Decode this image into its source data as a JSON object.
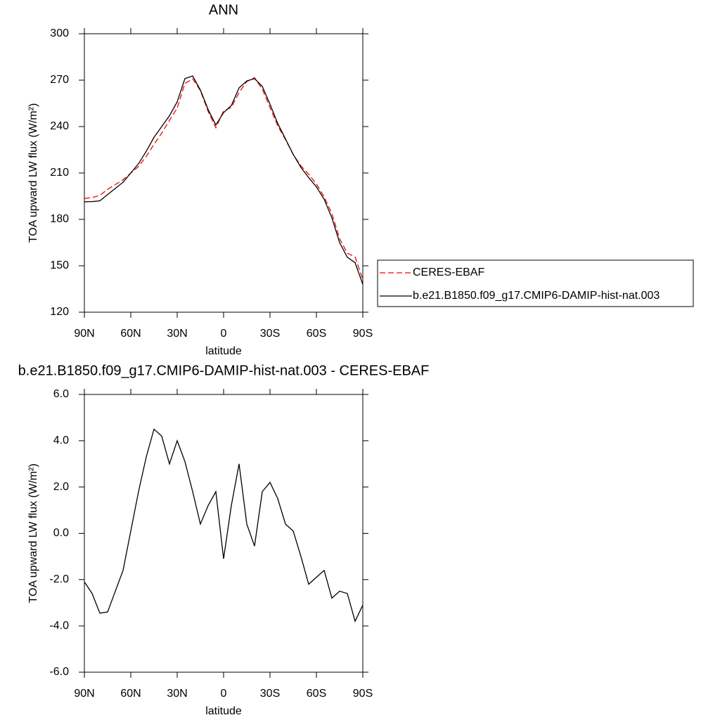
{
  "chart_data": [
    {
      "type": "line",
      "title": "ANN",
      "xlabel": "latitude",
      "ylabel": "TOA upward LW flux (W/m²)",
      "x": [
        90,
        85,
        80,
        75,
        70,
        65,
        60,
        55,
        50,
        45,
        40,
        35,
        30,
        25,
        20,
        15,
        10,
        5,
        0,
        -5,
        -10,
        -15,
        -20,
        -25,
        -30,
        -35,
        -40,
        -45,
        -50,
        -55,
        -60,
        -65,
        -70,
        -75,
        -80,
        -85,
        -90
      ],
      "xlim": [
        90,
        -90
      ],
      "xticks": [
        {
          "value": 90,
          "label": "90N"
        },
        {
          "value": 60,
          "label": "60N"
        },
        {
          "value": 30,
          "label": "30N"
        },
        0,
        {
          "value": -30,
          "label": "30S"
        },
        {
          "value": -60,
          "label": "60S"
        },
        {
          "value": -90,
          "label": "90S"
        }
      ],
      "ylim": [
        120,
        300
      ],
      "yticks": [
        120,
        150,
        180,
        210,
        240,
        270,
        300
      ],
      "legend": "right",
      "series": [
        {
          "name": "CERES-EBAF",
          "color": "#ff0000",
          "line_style": "dashed",
          "values": [
            193.5,
            194.1,
            195.5,
            199.4,
            202.5,
            205.6,
            209.9,
            214.2,
            220.7,
            228.5,
            235.8,
            244,
            252,
            267.9,
            270.9,
            263.2,
            249.8,
            239.2,
            250.1,
            252.4,
            262,
            269.1,
            271.6,
            264.2,
            252.3,
            240.5,
            231.6,
            221.9,
            214.6,
            209.2,
            202.9,
            194.6,
            183.8,
            167.5,
            158.1,
            155.8,
            141.1
          ]
        },
        {
          "name": "b.e21.B1850.f09_g17.CMIP6-DAMIP-hist-nat.003",
          "color": "#000000",
          "line_style": "solid",
          "values": [
            191.4,
            191.5,
            192,
            196,
            200,
            204,
            210,
            216,
            224,
            233,
            240,
            247,
            256,
            271,
            272.7,
            263.6,
            251,
            241,
            249,
            253.6,
            265,
            269.5,
            271,
            266,
            254.5,
            242,
            232,
            222,
            213.6,
            207,
            201,
            193,
            181,
            165,
            155.5,
            152,
            138
          ]
        }
      ]
    },
    {
      "type": "line",
      "title": "b.e21.B1850.f09_g17.CMIP6-DAMIP-hist-nat.003 - CERES-EBAF",
      "xlabel": "latitude",
      "ylabel": "TOA upward LW flux (W/m²)",
      "x": [
        90,
        85,
        80,
        75,
        70,
        65,
        60,
        55,
        50,
        45,
        40,
        35,
        30,
        25,
        20,
        15,
        10,
        5,
        0,
        -5,
        -10,
        -15,
        -20,
        -25,
        -30,
        -35,
        -40,
        -45,
        -50,
        -55,
        -60,
        -65,
        -70,
        -75,
        -80,
        -85,
        -90
      ],
      "xlim": [
        90,
        -90
      ],
      "xticks": [
        {
          "value": 90,
          "label": "90N"
        },
        {
          "value": 60,
          "label": "60N"
        },
        {
          "value": 30,
          "label": "30N"
        },
        0,
        {
          "value": -30,
          "label": "30S"
        },
        {
          "value": -60,
          "label": "60S"
        },
        {
          "value": -90,
          "label": "90S"
        }
      ],
      "ylim": [
        -6,
        6
      ],
      "yticks": [
        {
          "value": -6,
          "label": "-6.0"
        },
        {
          "value": -4,
          "label": "-4.0"
        },
        {
          "value": -2,
          "label": "-2.0"
        },
        {
          "value": 0,
          "label": "0.0"
        },
        {
          "value": 2,
          "label": "2.0"
        },
        {
          "value": 4,
          "label": "4.0"
        },
        {
          "value": 6,
          "label": "6.0"
        }
      ],
      "color": "#000000",
      "values": [
        -2.1,
        -2.6,
        -3.45,
        -3.4,
        -2.5,
        -1.6,
        0.1,
        1.8,
        3.3,
        4.5,
        4.2,
        3.0,
        4.0,
        3.1,
        1.8,
        0.4,
        1.2,
        1.8,
        -1.1,
        1.2,
        3.0,
        0.4,
        -0.55,
        1.8,
        2.2,
        1.5,
        0.4,
        0.1,
        -1.0,
        -2.2,
        -1.9,
        -1.6,
        -2.8,
        -2.5,
        -2.6,
        -3.8,
        -3.1
      ]
    }
  ]
}
